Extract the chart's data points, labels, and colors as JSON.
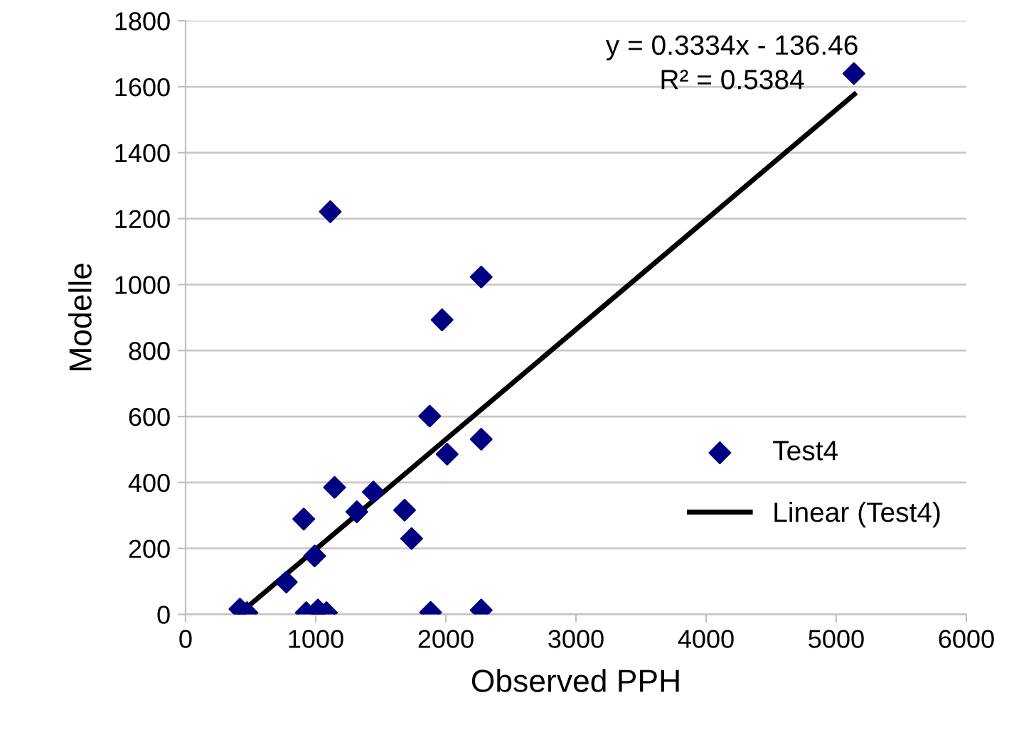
{
  "chart_data": {
    "type": "scatter",
    "xlabel": "Observed PPH",
    "ylabel": "Modelle",
    "xlim": [
      0,
      6000
    ],
    "xticks": [
      0,
      1000,
      2000,
      3000,
      4000,
      5000,
      6000
    ],
    "ylim": [
      0,
      1800
    ],
    "yticks": [
      0,
      200,
      400,
      600,
      800,
      1000,
      1200,
      1400,
      1600,
      1800
    ],
    "grid": "y",
    "legend": "right",
    "marker": "diamond",
    "annotations": [
      "y = 0.3334x - 136.46",
      "R² = 0.5384"
    ],
    "series": [
      {
        "name": "Test4",
        "color": "#000080",
        "x": [
          418,
          472,
          774,
          908,
          992,
          927,
          1017,
          1083,
          1145,
          1316,
          1443,
          1683,
          1737,
          1876,
          2010,
          1883,
          2272,
          1971,
          2272,
          2272,
          1112,
          5136
        ],
        "values": [
          16,
          5,
          98,
          289,
          177,
          5,
          13,
          5,
          385,
          311,
          371,
          316,
          230,
          601,
          486,
          6,
          1023,
          893,
          531,
          13,
          1221,
          1640
        ]
      },
      {
        "name": "Linear (Test4)",
        "type": "line",
        "color": "#000000",
        "marker": "none",
        "x": [
          450,
          5140
        ],
        "values": [
          14,
          1577
        ]
      }
    ]
  }
}
